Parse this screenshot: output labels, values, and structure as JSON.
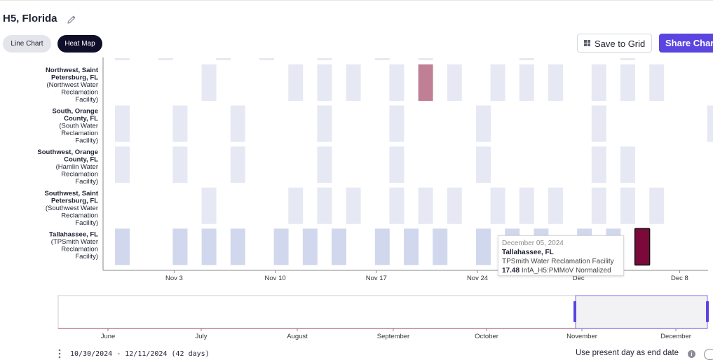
{
  "header": {
    "title": "H5, Florida",
    "tabs": [
      {
        "label": "Line Chart",
        "active": false
      },
      {
        "label": "Heat Map",
        "active": true
      }
    ],
    "save_label": "Save to Grid",
    "share_label": "Share Chart"
  },
  "colors": {
    "accent": "#5b45e0",
    "empty_cell": "#e6e9f4",
    "low_cell": "#d1d8ed",
    "mid_cell": "#c07f94",
    "high_cell": "#7b0a3a"
  },
  "chart_data": {
    "type": "heatmap",
    "x_tick_labels": [
      "Nov 3",
      "Nov 10",
      "Nov 17",
      "Nov 24",
      "Dec",
      "Dec 8"
    ],
    "x_start": "2024-10-30",
    "x_end": "2024-12-11",
    "rows": [
      {
        "bold": "Northwest, Saint Petersburg, FL",
        "sub": "(Northwest Water Reclamation Facility)"
      },
      {
        "bold": "South, Orange County, FL",
        "sub": "(South Water Reclamation Facility)"
      },
      {
        "bold": "Southwest, Orange County, FL",
        "sub": "(Hamlin Water Reclamation Facility)"
      },
      {
        "bold": "Southwest, Saint Petersburg, FL",
        "sub": "(Southwest Water Reclamation Facility)"
      },
      {
        "bold": "Tallahassee, FL",
        "sub": "(TPSmith Water Reclamation Facility)"
      }
    ],
    "cells": [
      {
        "row": 0,
        "date": "2024-11-05",
        "level": "empty"
      },
      {
        "row": 0,
        "date": "2024-11-11",
        "level": "empty"
      },
      {
        "row": 0,
        "date": "2024-11-13",
        "level": "empty"
      },
      {
        "row": 0,
        "date": "2024-11-15",
        "level": "empty"
      },
      {
        "row": 0,
        "date": "2024-11-18",
        "level": "empty"
      },
      {
        "row": 0,
        "date": "2024-11-20",
        "level": "mid"
      },
      {
        "row": 0,
        "date": "2024-11-22",
        "level": "empty"
      },
      {
        "row": 0,
        "date": "2024-11-25",
        "level": "empty"
      },
      {
        "row": 0,
        "date": "2024-11-27",
        "level": "empty"
      },
      {
        "row": 0,
        "date": "2024-11-29",
        "level": "empty"
      },
      {
        "row": 0,
        "date": "2024-12-02",
        "level": "empty"
      },
      {
        "row": 0,
        "date": "2024-12-04",
        "level": "empty"
      },
      {
        "row": 0,
        "date": "2024-12-06",
        "level": "empty"
      },
      {
        "row": 1,
        "date": "2024-10-30",
        "level": "empty"
      },
      {
        "row": 1,
        "date": "2024-11-03",
        "level": "empty"
      },
      {
        "row": 1,
        "date": "2024-11-07",
        "level": "empty"
      },
      {
        "row": 1,
        "date": "2024-11-13",
        "level": "empty"
      },
      {
        "row": 1,
        "date": "2024-11-18",
        "level": "empty"
      },
      {
        "row": 1,
        "date": "2024-11-24",
        "level": "empty"
      },
      {
        "row": 1,
        "date": "2024-12-02",
        "level": "empty"
      },
      {
        "row": 1,
        "date": "2024-12-10",
        "level": "empty"
      },
      {
        "row": 2,
        "date": "2024-10-30",
        "level": "empty"
      },
      {
        "row": 2,
        "date": "2024-11-03",
        "level": "empty"
      },
      {
        "row": 2,
        "date": "2024-11-07",
        "level": "empty"
      },
      {
        "row": 2,
        "date": "2024-11-13",
        "level": "empty"
      },
      {
        "row": 2,
        "date": "2024-11-18",
        "level": "empty"
      },
      {
        "row": 2,
        "date": "2024-11-24",
        "level": "empty"
      },
      {
        "row": 2,
        "date": "2024-12-02",
        "level": "empty"
      },
      {
        "row": 2,
        "date": "2024-12-04",
        "level": "empty"
      },
      {
        "row": 3,
        "date": "2024-11-05",
        "level": "empty"
      },
      {
        "row": 3,
        "date": "2024-11-11",
        "level": "empty"
      },
      {
        "row": 3,
        "date": "2024-11-13",
        "level": "empty"
      },
      {
        "row": 3,
        "date": "2024-11-15",
        "level": "empty"
      },
      {
        "row": 3,
        "date": "2024-11-18",
        "level": "empty"
      },
      {
        "row": 3,
        "date": "2024-11-20",
        "level": "empty"
      },
      {
        "row": 3,
        "date": "2024-11-22",
        "level": "empty"
      },
      {
        "row": 3,
        "date": "2024-11-25",
        "level": "empty"
      },
      {
        "row": 3,
        "date": "2024-11-27",
        "level": "empty"
      },
      {
        "row": 3,
        "date": "2024-11-29",
        "level": "empty"
      },
      {
        "row": 3,
        "date": "2024-12-02",
        "level": "empty"
      },
      {
        "row": 3,
        "date": "2024-12-04",
        "level": "empty"
      },
      {
        "row": 3,
        "date": "2024-12-06",
        "level": "empty"
      },
      {
        "row": 4,
        "date": "2024-10-30",
        "level": "low"
      },
      {
        "row": 4,
        "date": "2024-11-03",
        "level": "low"
      },
      {
        "row": 4,
        "date": "2024-11-05",
        "level": "low"
      },
      {
        "row": 4,
        "date": "2024-11-07",
        "level": "low"
      },
      {
        "row": 4,
        "date": "2024-11-10",
        "level": "low"
      },
      {
        "row": 4,
        "date": "2024-11-12",
        "level": "low"
      },
      {
        "row": 4,
        "date": "2024-11-14",
        "level": "low"
      },
      {
        "row": 4,
        "date": "2024-11-17",
        "level": "low"
      },
      {
        "row": 4,
        "date": "2024-11-19",
        "level": "low"
      },
      {
        "row": 4,
        "date": "2024-11-21",
        "level": "low"
      },
      {
        "row": 4,
        "date": "2024-11-24",
        "level": "low"
      },
      {
        "row": 4,
        "date": "2024-11-26",
        "level": "low"
      },
      {
        "row": 4,
        "date": "2024-11-28",
        "level": "low"
      },
      {
        "row": 4,
        "date": "2024-12-01",
        "level": "low"
      },
      {
        "row": 4,
        "date": "2024-12-03",
        "level": "low"
      },
      {
        "row": 4,
        "date": "2024-12-05",
        "level": "high",
        "value": 17.48,
        "selected": true
      }
    ],
    "tooltip": {
      "date": "December 05, 2024",
      "city": "Tallahassee, FL",
      "facility": "TPSmith Water Reclamation Facility",
      "value": "17.48",
      "metric": "InfA_H5:PMMoV Normalized"
    },
    "navigator": {
      "month_labels": [
        "June",
        "July",
        "August",
        "September",
        "October",
        "November",
        "December"
      ]
    }
  },
  "footer": {
    "date_range": "10/30/2024 - 12/11/2024 (42 days)",
    "present_day_label": "Use present day as end date",
    "info_icon": "info-icon"
  }
}
